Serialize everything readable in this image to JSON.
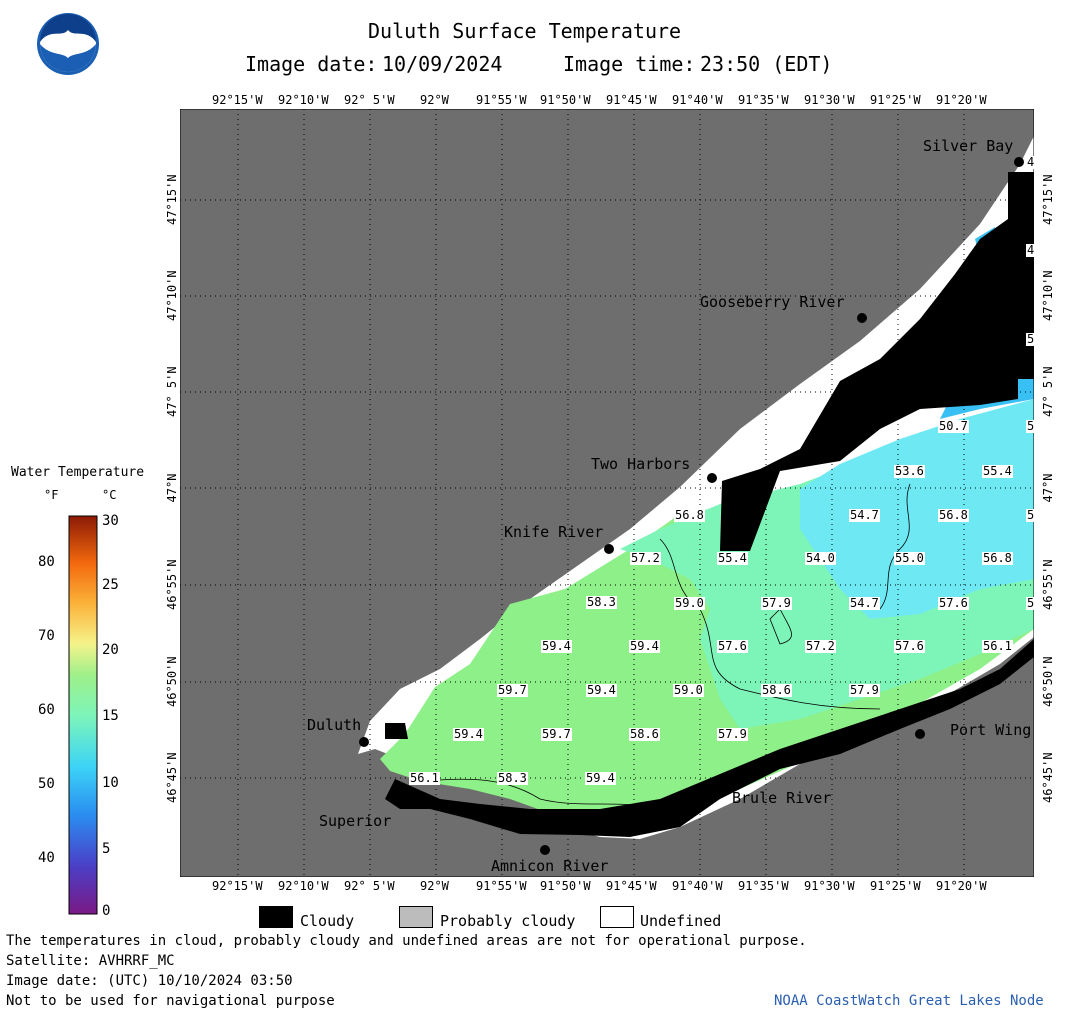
{
  "header": {
    "title": "Duluth Surface Temperature",
    "image_date_label": "Image date:",
    "image_date": "10/09/2024",
    "image_time_label": "Image time:",
    "image_time": "23:50 (EDT)"
  },
  "logo": {
    "text": "NOAA"
  },
  "colors": {
    "land": "#6e6e6e",
    "cloud": "#000000",
    "undefined": "#ffffff",
    "probably_cloudy": "#bcbcbc",
    "water_warm": "#8ef088",
    "water_mid": "#7ef5b8",
    "water_cool": "#6ee8f2",
    "water_cold": "#38c0f4"
  },
  "lon_labels": [
    "92°15'W",
    "92°10'W",
    "92° 5'W",
    "92°W",
    "91°55'W",
    "91°50'W",
    "91°45'W",
    "91°40'W",
    "91°35'W",
    "91°30'W",
    "91°25'W",
    "91°20'W"
  ],
  "lat_labels": [
    "47°15'N",
    "47°10'N",
    "47° 5'N",
    "47°N",
    "46°55'N",
    "46°50'N",
    "46°45'N"
  ],
  "places": {
    "silver_bay": "Silver Bay",
    "gooseberry": "Gooseberry River",
    "two_harbors": "Two Harbors",
    "knife_river": "Knife River",
    "duluth": "Duluth",
    "superior": "Superior",
    "amnicon": "Amnicon River",
    "brule": "Brule River",
    "port_wing": "Port Wing"
  },
  "temperatures": [
    "50.7",
    "53.6",
    "55.4",
    "56.8",
    "54.7",
    "56.8",
    "55.4",
    "54.0",
    "55.0",
    "56.8",
    "57.2",
    "58.3",
    "59.0",
    "57.9",
    "54.7",
    "57.6",
    "59.4",
    "59.4",
    "57.6",
    "57.2",
    "57.6",
    "56.1",
    "59.7",
    "59.4",
    "59.0",
    "58.6",
    "57.9",
    "59.4",
    "59.7",
    "58.6",
    "57.9",
    "56.1",
    "58.3",
    "59.4"
  ],
  "edge_labels": [
    "4",
    "4",
    "5",
    "5",
    "5",
    "5"
  ],
  "legend": {
    "title": "Water Temperature",
    "unit_f": "°F",
    "unit_c": "°C",
    "f_ticks": [
      "80",
      "70",
      "60",
      "50",
      "40"
    ],
    "c_ticks": [
      "30",
      "25",
      "20",
      "15",
      "10",
      "5",
      "0"
    ]
  },
  "key": {
    "cloudy": "Cloudy",
    "probably_cloudy": "Probably cloudy",
    "undefined": "Undefined"
  },
  "footer": {
    "disclaimer": "The temperatures in cloud, probably cloudy and undefined areas are not for operational purpose.",
    "satellite": "Satellite: AVHRRF_MC",
    "utc_date": "Image date: (UTC) 10/10/2024  03:50",
    "nav": "Not to be used for navigational purpose",
    "credit": "NOAA CoastWatch Great Lakes Node"
  }
}
